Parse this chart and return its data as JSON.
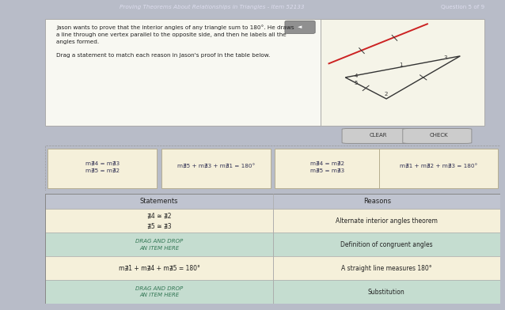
{
  "title_bar": "Proving Theorems About Relationships in Triangles - Item 52133",
  "title_bar_right": "Question 5 of 9",
  "bg_color": "#b8bcc8",
  "prob_bg": "#f8f8f2",
  "tri_bg": "#f5f4e8",
  "header_bg": "#c0c4d0",
  "problem_text_lines": [
    "Jason wants to prove that the interior angles of any triangle sum to 180°. He draws",
    "a line through one vertex parallel to the opposite side, and then he labels all the",
    "angles formed.",
    "",
    "Drag a statement to match each reason in Jason's proof in the table below."
  ],
  "drag_cards": [
    "m∄4 = m∄3\nm∄5 = m∄2",
    "m∄5 + m∄3 + m∄1 = 180°",
    "m∄4 = m∄2\nm∄5 = m∄3",
    "m∄1 + m∄2 + m∄3 = 180°"
  ],
  "statements_header": "Statements",
  "reasons_header": "Reasons",
  "table_rows": [
    {
      "statement": "∄4 ≅ ∄2\n∄5 ≅ ∄3",
      "reason": "Alternate interior angles theorem",
      "stmt_bg": "#f5f0da",
      "reason_bg": "#f5f0da",
      "drag": false
    },
    {
      "statement": "DRAG AND DROP\nAN ITEM HERE",
      "reason": "Definition of congruent angles",
      "stmt_bg": "#c5ddd0",
      "reason_bg": "#c5ddd0",
      "drag": true
    },
    {
      "statement": "m∄1 + m∄4 + m∄5 = 180°",
      "reason": "A straight line measures 180°",
      "stmt_bg": "#f5f0da",
      "reason_bg": "#f5f0da",
      "drag": false
    },
    {
      "statement": "DRAG AND DROP\nAN ITEM HERE",
      "reason": "Substitution",
      "stmt_bg": "#c5ddd0",
      "reason_bg": "#c5ddd0",
      "drag": true
    }
  ]
}
